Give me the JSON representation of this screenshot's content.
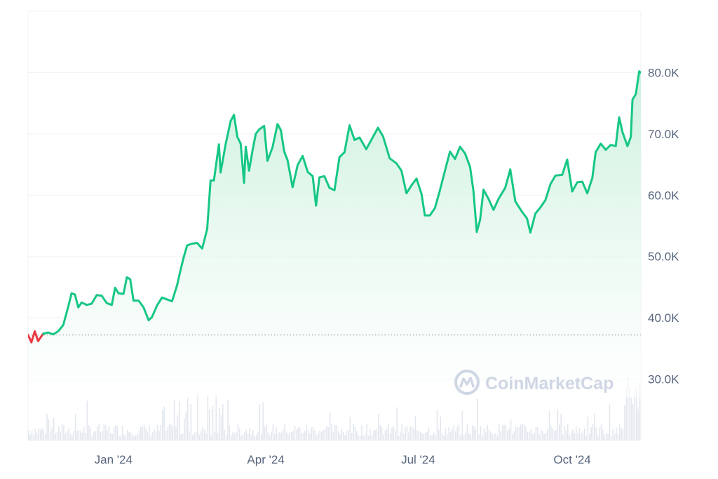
{
  "watermark": {
    "text": "CoinMarketCap",
    "logo": "coinmarketcap-logo-icon"
  },
  "colors": {
    "up": "#16c784",
    "down": "#ea3943",
    "area_top": "#c9f0dc",
    "area_bottom": "#ffffff",
    "grid": "#eff2f5",
    "volume": "#e3e7ee",
    "baseline": "#9aa1ad",
    "tick": "#58667e"
  },
  "chart_data": {
    "type": "area",
    "title": "",
    "xlabel": "",
    "ylabel": "",
    "x_range": [
      "2023-11-11",
      "2024-11-11"
    ],
    "ylim": [
      20000,
      90000
    ],
    "y_ticks": [
      {
        "value": 30000,
        "label": "30.0K"
      },
      {
        "value": 40000,
        "label": "40.0K"
      },
      {
        "value": 50000,
        "label": "50.0K"
      },
      {
        "value": 60000,
        "label": "60.0K"
      },
      {
        "value": 70000,
        "label": "70.0K"
      },
      {
        "value": 80000,
        "label": "80.0K"
      }
    ],
    "x_ticks": [
      {
        "date": "2024-01-01",
        "label": "Jan '24"
      },
      {
        "date": "2024-04-01",
        "label": "Apr '24"
      },
      {
        "date": "2024-07-01",
        "label": "Jul '24"
      },
      {
        "date": "2024-10-01",
        "label": "Oct '24"
      }
    ],
    "baseline_value": 37200,
    "grid": "horizontal",
    "volume_bars": "relative, bottom of plot",
    "series": [
      {
        "points": [
          [
            "2023-11-11",
            37200
          ],
          [
            "2023-11-13",
            36000
          ],
          [
            "2023-11-15",
            37800
          ],
          [
            "2023-11-17",
            36200
          ],
          [
            "2023-11-20",
            37400
          ],
          [
            "2023-11-23",
            37600
          ],
          [
            "2023-11-26",
            37300
          ],
          [
            "2023-11-29",
            37800
          ],
          [
            "2023-12-02",
            38800
          ],
          [
            "2023-12-05",
            41800
          ],
          [
            "2023-12-07",
            44000
          ],
          [
            "2023-12-09",
            43800
          ],
          [
            "2023-12-11",
            41700
          ],
          [
            "2023-12-13",
            42500
          ],
          [
            "2023-12-16",
            42100
          ],
          [
            "2023-12-19",
            42300
          ],
          [
            "2023-12-22",
            43700
          ],
          [
            "2023-12-25",
            43600
          ],
          [
            "2023-12-28",
            42400
          ],
          [
            "2023-12-31",
            42100
          ],
          [
            "2024-01-02",
            44900
          ],
          [
            "2024-01-04",
            44000
          ],
          [
            "2024-01-07",
            43900
          ],
          [
            "2024-01-09",
            46600
          ],
          [
            "2024-01-11",
            46300
          ],
          [
            "2024-01-13",
            42800
          ],
          [
            "2024-01-16",
            42800
          ],
          [
            "2024-01-19",
            41700
          ],
          [
            "2024-01-22",
            39600
          ],
          [
            "2024-01-24",
            40100
          ],
          [
            "2024-01-27",
            42000
          ],
          [
            "2024-01-30",
            43300
          ],
          [
            "2024-02-02",
            43000
          ],
          [
            "2024-02-05",
            42700
          ],
          [
            "2024-02-08",
            45300
          ],
          [
            "2024-02-10",
            47700
          ],
          [
            "2024-02-12",
            49900
          ],
          [
            "2024-02-14",
            51800
          ],
          [
            "2024-02-17",
            52100
          ],
          [
            "2024-02-20",
            52200
          ],
          [
            "2024-02-23",
            51300
          ],
          [
            "2024-02-26",
            54500
          ],
          [
            "2024-02-28",
            62400
          ],
          [
            "2024-03-01",
            62400
          ],
          [
            "2024-03-04",
            68300
          ],
          [
            "2024-03-05",
            63700
          ],
          [
            "2024-03-08",
            68300
          ],
          [
            "2024-03-11",
            72100
          ],
          [
            "2024-03-13",
            73100
          ],
          [
            "2024-03-15",
            69500
          ],
          [
            "2024-03-17",
            68400
          ],
          [
            "2024-03-19",
            62000
          ],
          [
            "2024-03-20",
            67900
          ],
          [
            "2024-03-22",
            64000
          ],
          [
            "2024-03-24",
            67200
          ],
          [
            "2024-03-26",
            70000
          ],
          [
            "2024-03-28",
            70700
          ],
          [
            "2024-03-31",
            71300
          ],
          [
            "2024-04-02",
            65600
          ],
          [
            "2024-04-05",
            67800
          ],
          [
            "2024-04-08",
            71600
          ],
          [
            "2024-04-10",
            70600
          ],
          [
            "2024-04-12",
            67100
          ],
          [
            "2024-04-14",
            65700
          ],
          [
            "2024-04-17",
            61300
          ],
          [
            "2024-04-20",
            64900
          ],
          [
            "2024-04-23",
            66400
          ],
          [
            "2024-04-26",
            63800
          ],
          [
            "2024-04-29",
            63100
          ],
          [
            "2024-05-01",
            58300
          ],
          [
            "2024-05-03",
            62900
          ],
          [
            "2024-05-06",
            63100
          ],
          [
            "2024-05-09",
            61200
          ],
          [
            "2024-05-12",
            60800
          ],
          [
            "2024-05-15",
            66200
          ],
          [
            "2024-05-18",
            67000
          ],
          [
            "2024-05-21",
            71400
          ],
          [
            "2024-05-24",
            69000
          ],
          [
            "2024-05-27",
            69400
          ],
          [
            "2024-05-31",
            67500
          ],
          [
            "2024-06-03",
            69000
          ],
          [
            "2024-06-07",
            71000
          ],
          [
            "2024-06-10",
            69600
          ],
          [
            "2024-06-14",
            66000
          ],
          [
            "2024-06-18",
            65200
          ],
          [
            "2024-06-21",
            64000
          ],
          [
            "2024-06-24",
            60300
          ],
          [
            "2024-06-27",
            61600
          ],
          [
            "2024-06-30",
            62700
          ],
          [
            "2024-07-03",
            60200
          ],
          [
            "2024-07-05",
            56700
          ],
          [
            "2024-07-08",
            56700
          ],
          [
            "2024-07-11",
            57900
          ],
          [
            "2024-07-14",
            60800
          ],
          [
            "2024-07-17",
            64000
          ],
          [
            "2024-07-20",
            67100
          ],
          [
            "2024-07-23",
            65900
          ],
          [
            "2024-07-26",
            67900
          ],
          [
            "2024-07-29",
            66800
          ],
          [
            "2024-08-01",
            64600
          ],
          [
            "2024-08-03",
            60700
          ],
          [
            "2024-08-05",
            54000
          ],
          [
            "2024-08-07",
            56000
          ],
          [
            "2024-08-09",
            60900
          ],
          [
            "2024-08-12",
            59400
          ],
          [
            "2024-08-15",
            57600
          ],
          [
            "2024-08-18",
            59400
          ],
          [
            "2024-08-22",
            61200
          ],
          [
            "2024-08-25",
            64200
          ],
          [
            "2024-08-28",
            59000
          ],
          [
            "2024-09-01",
            57300
          ],
          [
            "2024-09-04",
            56200
          ],
          [
            "2024-09-06",
            53900
          ],
          [
            "2024-09-09",
            57000
          ],
          [
            "2024-09-12",
            58000
          ],
          [
            "2024-09-15",
            59200
          ],
          [
            "2024-09-18",
            61800
          ],
          [
            "2024-09-21",
            63200
          ],
          [
            "2024-09-25",
            63300
          ],
          [
            "2024-09-28",
            65800
          ],
          [
            "2024-10-01",
            60600
          ],
          [
            "2024-10-04",
            62100
          ],
          [
            "2024-10-07",
            62200
          ],
          [
            "2024-10-10",
            60300
          ],
          [
            "2024-10-13",
            62800
          ],
          [
            "2024-10-15",
            67000
          ],
          [
            "2024-10-18",
            68400
          ],
          [
            "2024-10-21",
            67400
          ],
          [
            "2024-10-24",
            68200
          ],
          [
            "2024-10-27",
            68000
          ],
          [
            "2024-10-29",
            72700
          ],
          [
            "2024-10-31",
            70300
          ],
          [
            "2024-11-03",
            68000
          ],
          [
            "2024-11-05",
            69500
          ],
          [
            "2024-11-06",
            75600
          ],
          [
            "2024-11-08",
            76500
          ],
          [
            "2024-11-10",
            80200
          ],
          [
            "2024-11-11",
            80000
          ]
        ]
      }
    ]
  }
}
